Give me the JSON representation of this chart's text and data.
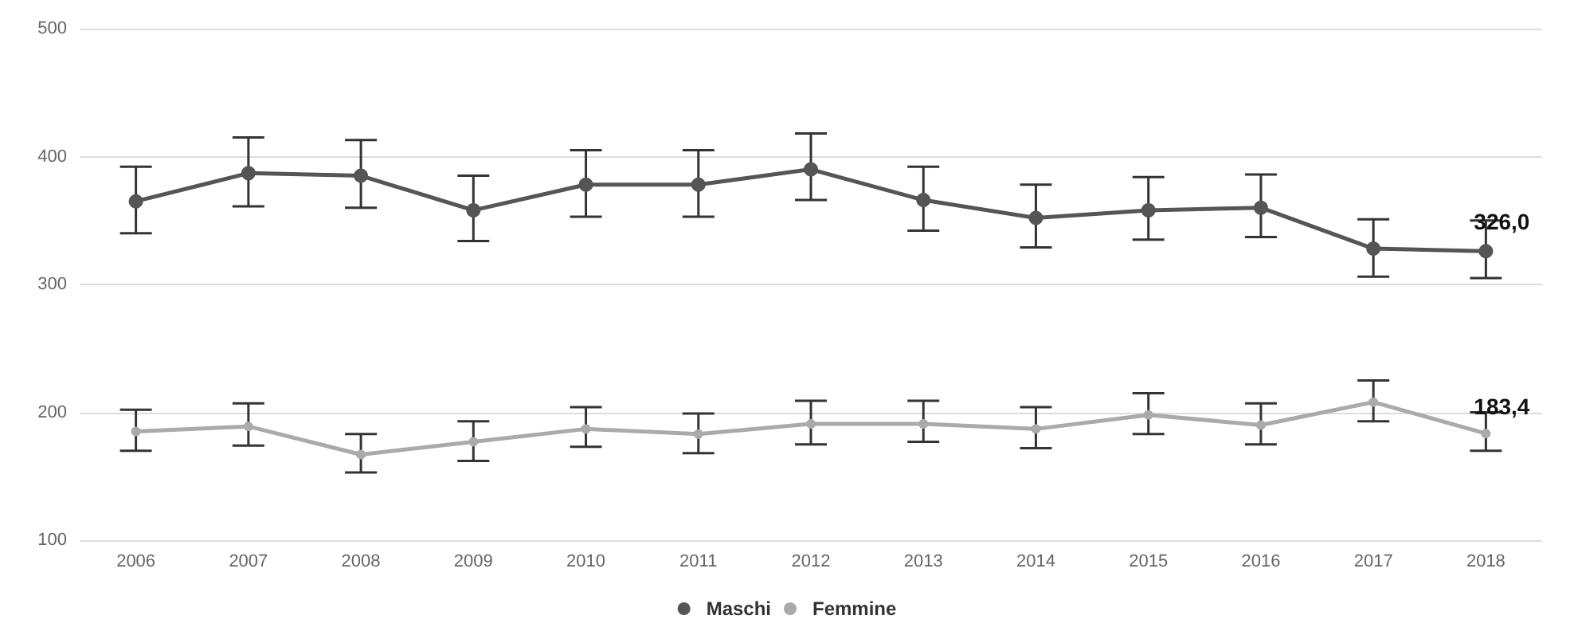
{
  "chart_data": {
    "type": "line",
    "categories": [
      "2006",
      "2007",
      "2008",
      "2009",
      "2010",
      "2011",
      "2012",
      "2013",
      "2014",
      "2015",
      "2016",
      "2017",
      "2018"
    ],
    "series": [
      {
        "name": "Maschi",
        "color": "#555555",
        "values": [
          365,
          387,
          385,
          358,
          378,
          378,
          390,
          366,
          352,
          358,
          360,
          328,
          326.0
        ],
        "errors": [
          [
            340,
            392
          ],
          [
            361,
            415
          ],
          [
            360,
            413
          ],
          [
            334,
            385
          ],
          [
            353,
            405
          ],
          [
            353,
            405
          ],
          [
            366,
            418
          ],
          [
            342,
            392
          ],
          [
            329,
            378
          ],
          [
            335,
            384
          ],
          [
            337,
            386
          ],
          [
            306,
            351
          ],
          [
            305,
            350
          ]
        ],
        "value_labels": [
          null,
          null,
          null,
          null,
          null,
          null,
          null,
          null,
          null,
          null,
          null,
          null,
          "326,0"
        ]
      },
      {
        "name": "Femmine",
        "color": "#aaaaaa",
        "values": [
          185,
          189,
          167,
          177,
          187,
          183,
          191,
          191,
          187,
          198,
          190,
          208,
          183.4
        ],
        "errors": [
          [
            170,
            202
          ],
          [
            174,
            207
          ],
          [
            153,
            183
          ],
          [
            162,
            193
          ],
          [
            173,
            204
          ],
          [
            168,
            199
          ],
          [
            175,
            209
          ],
          [
            177,
            209
          ],
          [
            172,
            204
          ],
          [
            183,
            215
          ],
          [
            175,
            207
          ],
          [
            193,
            225
          ],
          [
            170,
            200
          ]
        ],
        "value_labels": [
          null,
          null,
          null,
          null,
          null,
          null,
          null,
          null,
          null,
          null,
          null,
          null,
          "183,4"
        ]
      }
    ],
    "ylim": [
      100,
      500
    ],
    "yticks": [
      100,
      200,
      300,
      400,
      500
    ],
    "grid": "y",
    "legend": "bottom",
    "marker": "circle",
    "line_style": "solid"
  }
}
